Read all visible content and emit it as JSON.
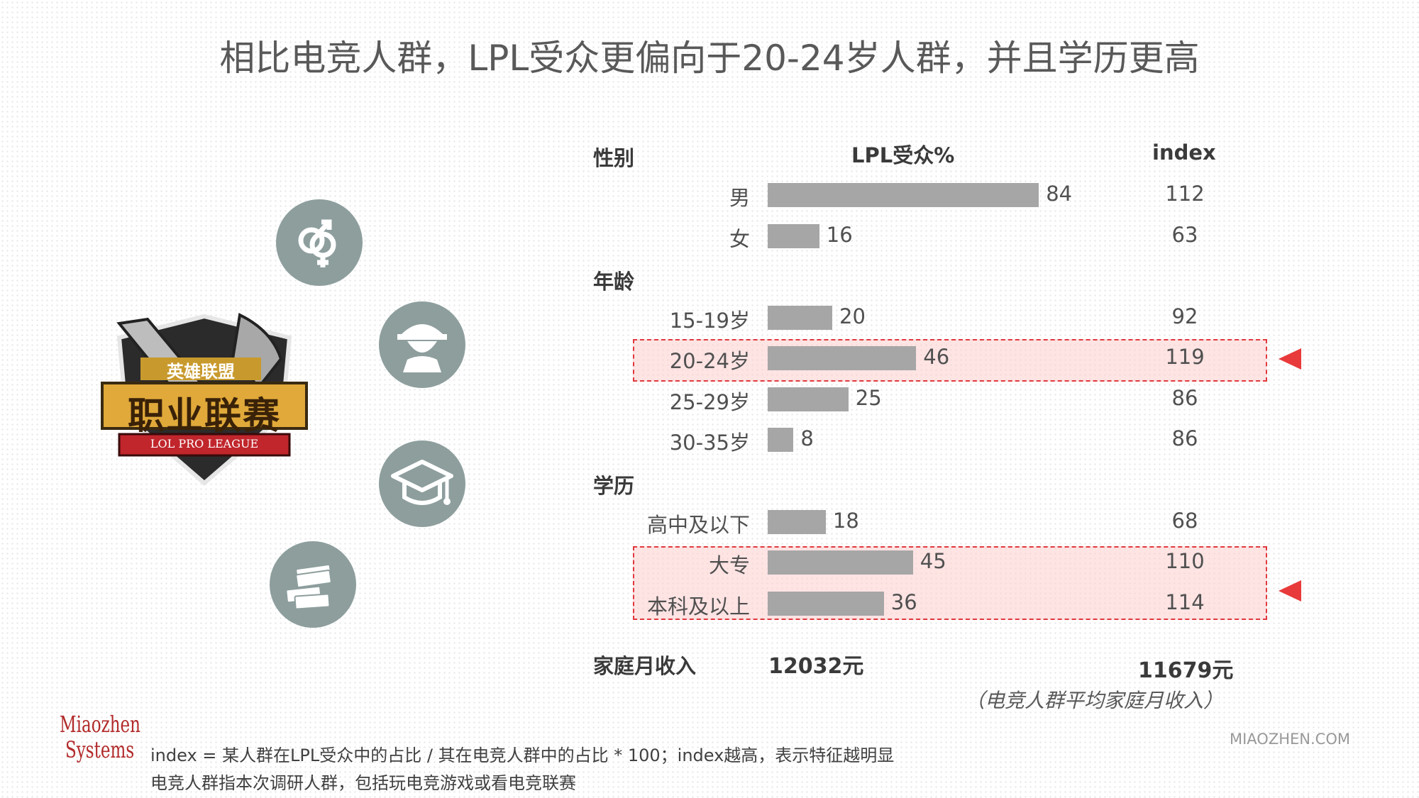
{
  "title": "相比电竞人群，LPL受众更偏向于20-24岁人群，并且学历更高",
  "headers": {
    "section": "性别",
    "lpl": "LPL受众%",
    "index": "index"
  },
  "sections": {
    "age": "年龄",
    "education": "学历"
  },
  "chart_data": {
    "type": "bar",
    "orientation": "horizontal",
    "title": "LPL受众%",
    "xlim": [
      0,
      100
    ],
    "groups": [
      {
        "name": "性别",
        "rows": [
          {
            "label": "男",
            "value": 84,
            "index": 112
          },
          {
            "label": "女",
            "value": 16,
            "index": 63
          }
        ]
      },
      {
        "name": "年龄",
        "rows": [
          {
            "label": "15-19岁",
            "value": 20,
            "index": 92
          },
          {
            "label": "20-24岁",
            "value": 46,
            "index": 119,
            "highlighted": true
          },
          {
            "label": "25-29岁",
            "value": 25,
            "index": 86
          },
          {
            "label": "30-35岁",
            "value": 8,
            "index": 86
          }
        ]
      },
      {
        "name": "学历",
        "rows": [
          {
            "label": "高中及以下",
            "value": 18,
            "index": 68
          },
          {
            "label": "大专",
            "value": 45,
            "index": 110,
            "highlighted": true
          },
          {
            "label": "本科及以上",
            "value": 36,
            "index": 114,
            "highlighted": true
          }
        ]
      }
    ],
    "bar_color": "#a6a6a6",
    "highlight_color": "#e0393e"
  },
  "income": {
    "label": "家庭月收入",
    "lpl_value": "12032元",
    "esports_value": "11679元",
    "note": "（电竞人群平均家庭月收入）"
  },
  "logo": {
    "cn_small": "英雄联盟",
    "cn_big": "职业联赛",
    "en": "LOL PRO LEAGUE"
  },
  "icons": [
    "gender-icon",
    "person-icon",
    "graduation-cap-icon",
    "money-icon"
  ],
  "brand": {
    "line1": "Miaozhen",
    "line2": "Systems"
  },
  "footnotes": {
    "line1": "index = 某人群在LPL受众中的占比 / 其在电竞人群中的占比 * 100；index越高，表示特征越明显",
    "line2": "电竞人群指本次调研人群，包括玩电竞游戏或看电竞联赛"
  },
  "site": "MIAOZHEN.COM",
  "accent_color": "#e83a3a"
}
